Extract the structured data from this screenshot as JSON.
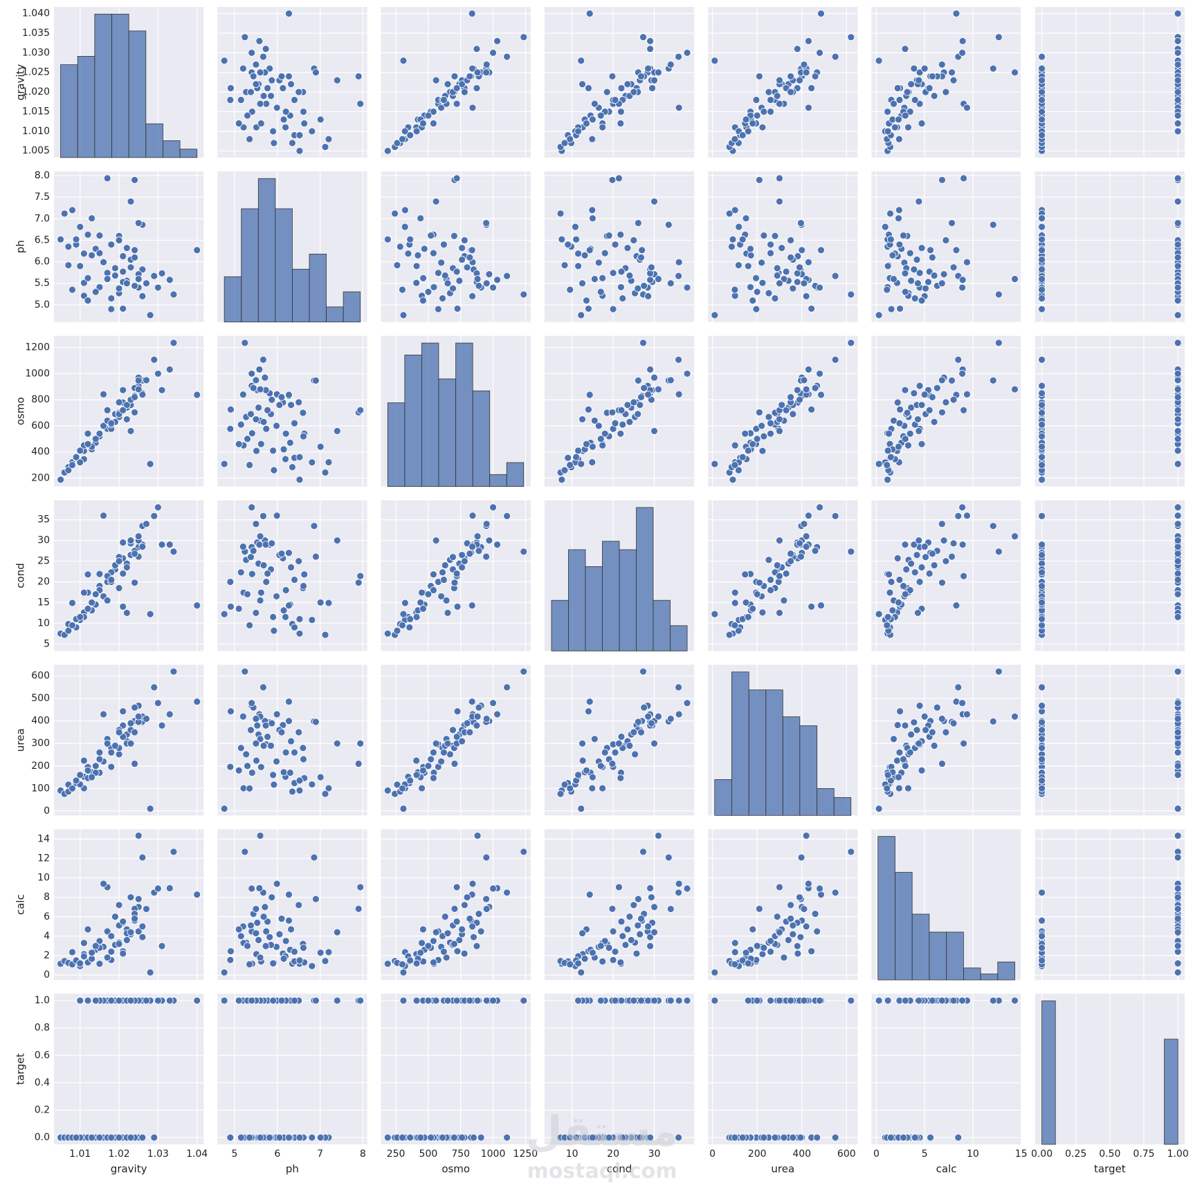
{
  "chart_data": {
    "type": "pairplot",
    "color": "#4c72b0",
    "grid": true,
    "watermark": "مستقل",
    "watermark_url": "mostaql.com",
    "variables": [
      {
        "name": "gravity",
        "lim": [
          1.0033,
          1.0417
        ],
        "yticks": [
          1.005,
          {
            "value": 1.01,
            "label": "1.010"
          },
          1.015,
          {
            "value": 1.02,
            "label": "1.020"
          },
          1.025,
          {
            "value": 1.03,
            "label": "1.030"
          },
          1.035,
          {
            "value": 1.04,
            "label": "1.040"
          }
        ],
        "xticks": [
          1.01,
          1.02,
          1.03,
          1.04
        ],
        "bins": [
          1.005,
          1.009375,
          1.01375,
          1.018125,
          1.0225,
          1.026875,
          1.03125,
          1.035625,
          1.04
        ],
        "counts": [
          11,
          12,
          17,
          17,
          15,
          4,
          2,
          1
        ]
      },
      {
        "name": "ph",
        "lim": [
          4.6,
          8.1
        ],
        "yticks": [
          {
            "value": 5,
            "label": "5.0"
          },
          5.5,
          {
            "value": 6,
            "label": "6.0"
          },
          6.5,
          {
            "value": 7,
            "label": "7.0"
          },
          7.5,
          {
            "value": 8,
            "label": "8.0"
          }
        ],
        "xticks": [
          5,
          6,
          7,
          8
        ],
        "bins": [
          4.76,
          5.1575,
          5.555,
          5.9525,
          6.35,
          6.7475,
          7.145,
          7.5425,
          7.94
        ],
        "counts": [
          6,
          15,
          19,
          15,
          7,
          9,
          2,
          4
        ]
      },
      {
        "name": "osmo",
        "lim": [
          135,
          1290
        ],
        "yticks": [
          200,
          400,
          600,
          800,
          1000,
          1200
        ],
        "xticks": [
          250,
          500,
          750,
          1000,
          1250
        ],
        "bins": [
          187,
          318,
          449,
          580,
          712,
          843,
          974,
          1105,
          1236
        ],
        "counts": [
          7,
          11,
          12,
          9,
          12,
          8,
          1,
          2
        ]
      },
      {
        "name": "cond",
        "lim": [
          3.3,
          39.7
        ],
        "yticks": [
          5,
          10,
          15,
          20,
          25,
          30,
          35
        ],
        "xticks": [
          10,
          20,
          30
        ],
        "bins": [
          5,
          9.125,
          13.25,
          17.375,
          21.5,
          25.625,
          29.75,
          33.875,
          38
        ],
        "counts": [
          6,
          12,
          10,
          13,
          12,
          17,
          6,
          3
        ]
      },
      {
        "name": "urea",
        "lim": [
          -20,
          650
        ],
        "yticks": [
          0,
          100,
          200,
          300,
          400,
          500,
          600
        ],
        "xticks": [
          0,
          200,
          400,
          600
        ],
        "bins": [
          10,
          86,
          163,
          239,
          315,
          391,
          468,
          544,
          620
        ],
        "counts": [
          4,
          16,
          14,
          14,
          11,
          10,
          3,
          2
        ]
      },
      {
        "name": "calc",
        "lim": [
          -0.5,
          15
        ],
        "yticks": [
          0,
          2,
          4,
          6,
          8,
          10,
          12,
          14
        ],
        "xticks": [
          0,
          5,
          10,
          15
        ],
        "bins": [
          0.17,
          1.94,
          3.71,
          5.48,
          7.26,
          9.03,
          10.8,
          12.57,
          14.34
        ],
        "counts": [
          24,
          18,
          11,
          8,
          8,
          2,
          1,
          3
        ]
      },
      {
        "name": "target",
        "lim": [
          -0.05,
          1.05
        ],
        "yticks": [
          {
            "value": 0,
            "label": "0.0"
          },
          0.2,
          0.4,
          0.6,
          0.8,
          {
            "value": 1,
            "label": "1.0"
          }
        ],
        "xticks": [
          {
            "value": 0,
            "label": "0.00"
          },
          0.25,
          {
            "value": 0.5,
            "label": "0.50"
          },
          0.75,
          {
            "value": 1,
            "label": "1.00"
          }
        ],
        "bins": [
          0,
          0.1,
          0.2,
          0.3,
          0.4,
          0.5,
          0.6,
          0.7,
          0.8,
          0.9,
          1
        ],
        "counts": [
          45,
          0,
          0,
          0,
          0,
          0,
          0,
          0,
          0,
          33
        ]
      }
    ],
    "rows": [
      [
        1.021,
        4.91,
        725,
        14.0,
        443,
        2.45,
        0
      ],
      [
        1.017,
        5.74,
        577,
        20.0,
        296,
        4.49,
        0
      ],
      [
        1.008,
        7.2,
        321,
        14.9,
        101,
        2.36,
        0
      ],
      [
        1.011,
        5.51,
        408,
        12.6,
        224,
        2.15,
        0
      ],
      [
        1.005,
        6.52,
        187,
        7.5,
        91,
        1.16,
        0
      ],
      [
        1.02,
        5.27,
        668,
        25.3,
        252,
        3.34,
        0
      ],
      [
        1.012,
        5.62,
        461,
        17.4,
        195,
        1.4,
        0
      ],
      [
        1.029,
        5.67,
        1107,
        35.9,
        550,
        8.48,
        0
      ],
      [
        1.015,
        5.41,
        543,
        21.9,
        170,
        1.16,
        0
      ],
      [
        1.021,
        6.13,
        779,
        25.7,
        382,
        2.21,
        0
      ],
      [
        1.011,
        6.19,
        345,
        11.5,
        152,
        1.93,
        0
      ],
      [
        1.025,
        5.4,
        907,
        28.4,
        468,
        4.49,
        0
      ],
      [
        1.006,
        7.12,
        242,
        7.2,
        76,
        1.44,
        0
      ],
      [
        1.007,
        6.35,
        283,
        9.8,
        86,
        1.17,
        0
      ],
      [
        1.011,
        5.21,
        450,
        17.4,
        101,
        3.3,
        0
      ],
      [
        1.018,
        4.9,
        577,
        20.0,
        196,
        1.55,
        0
      ],
      [
        1.009,
        6.4,
        355,
        9.0,
        124,
        1.41,
        0
      ],
      [
        1.012,
        6.63,
        540,
        21.8,
        146,
        1.3,
        0
      ],
      [
        1.007,
        5.92,
        260,
        8.2,
        117,
        1.25,
        0
      ],
      [
        1.013,
        6.15,
        420,
        13.1,
        172,
        1.68,
        0
      ],
      [
        1.016,
        5.98,
        600,
        16.5,
        220,
        2.9,
        0
      ],
      [
        1.022,
        5.56,
        740,
        24.4,
        340,
        3.6,
        0
      ],
      [
        1.01,
        6.81,
        320,
        10.8,
        118,
        0.92,
        0
      ],
      [
        1.014,
        6.3,
        470,
        14.5,
        170,
        2.6,
        0
      ],
      [
        1.019,
        5.85,
        690,
        23.0,
        290,
        3.1,
        0
      ],
      [
        1.024,
        6.27,
        830,
        27.0,
        400,
        5.6,
        0
      ],
      [
        1.026,
        5.82,
        850,
        29.0,
        394,
        3.9,
        0
      ],
      [
        1.02,
        6.6,
        700,
        18.5,
        280,
        3.2,
        0
      ],
      [
        1.017,
        5.6,
        640,
        15.5,
        320,
        1.8,
        0
      ],
      [
        1.023,
        6.05,
        760,
        26.5,
        360,
        4.2,
        0
      ],
      [
        1.008,
        5.35,
        300,
        9.5,
        100,
        1.1,
        0
      ],
      [
        1.013,
        7.01,
        440,
        15.0,
        150,
        2.3,
        0
      ],
      [
        1.015,
        6.61,
        520,
        19.0,
        230,
        2.8,
        0
      ],
      [
        1.018,
        5.15,
        610,
        22.3,
        280,
        4.0,
        0
      ],
      [
        1.009,
        6.52,
        360,
        11.0,
        135,
        1.5,
        0
      ],
      [
        1.021,
        5.53,
        874,
        29.5,
        380,
        5.38,
        1
      ],
      [
        1.034,
        5.24,
        1236,
        27.3,
        620,
        12.68,
        1
      ],
      [
        1.04,
        6.27,
        838,
        14.3,
        486,
        8.28,
        1
      ],
      [
        1.028,
        4.76,
        308,
        12.2,
        10,
        0.27,
        1
      ],
      [
        1.026,
        6.86,
        948,
        33.5,
        398,
        12.1,
        1
      ],
      [
        1.025,
        5.71,
        970,
        30.0,
        400,
        7.0,
        1
      ],
      [
        1.033,
        5.58,
        1032,
        29.0,
        430,
        8.94,
        1
      ],
      [
        1.031,
        5.73,
        874,
        29.0,
        380,
        2.98,
        1
      ],
      [
        1.024,
        7.9,
        703,
        19.8,
        210,
        6.81,
        1
      ],
      [
        1.025,
        6.9,
        947,
        26.1,
        396,
        7.82,
        1
      ],
      [
        1.017,
        7.94,
        720,
        21.4,
        300,
        9.04,
        1
      ],
      [
        1.016,
        5.99,
        842,
        36.0,
        430,
        9.39,
        1
      ],
      [
        1.02,
        5.38,
        690,
        26.0,
        360,
        5.1,
        1
      ],
      [
        1.024,
        5.44,
        890,
        27.5,
        460,
        6.3,
        1
      ],
      [
        1.022,
        6.32,
        760,
        23.5,
        310,
        4.7,
        1
      ],
      [
        1.023,
        5.87,
        800,
        29.3,
        390,
        8.0,
        1
      ],
      [
        1.021,
        5.77,
        720,
        22.0,
        330,
        5.5,
        1
      ],
      [
        1.019,
        5.68,
        630,
        24.0,
        290,
        6.0,
        1
      ],
      [
        1.026,
        5.2,
        840,
        28.5,
        420,
        5.0,
        1
      ],
      [
        1.015,
        6.2,
        540,
        18.0,
        260,
        3.5,
        1
      ],
      [
        1.02,
        6.5,
        780,
        25.0,
        350,
        7.2,
        1
      ],
      [
        1.025,
        5.6,
        880,
        31.0,
        420,
        14.34,
        1
      ],
      [
        1.012,
        5.1,
        460,
        13.5,
        180,
        4.7,
        1
      ],
      [
        1.018,
        6.4,
        620,
        20.5,
        260,
        2.4,
        1
      ],
      [
        1.027,
        5.5,
        950,
        34.0,
        410,
        6.8,
        1
      ],
      [
        1.022,
        5.5,
        650,
        12.5,
        300,
        4.3,
        1
      ],
      [
        1.014,
        5.3,
        500,
        17.0,
        200,
        3.0,
        1
      ],
      [
        1.01,
        5.9,
        410,
        11.5,
        160,
        1.2,
        1
      ],
      [
        1.03,
        5.4,
        1000,
        38.0,
        480,
        8.9,
        1
      ],
      [
        1.024,
        6.1,
        820,
        26.8,
        350,
        5.8,
        1
      ],
      [
        1.023,
        7.4,
        560,
        30.0,
        300,
        4.4,
        1
      ]
    ]
  }
}
